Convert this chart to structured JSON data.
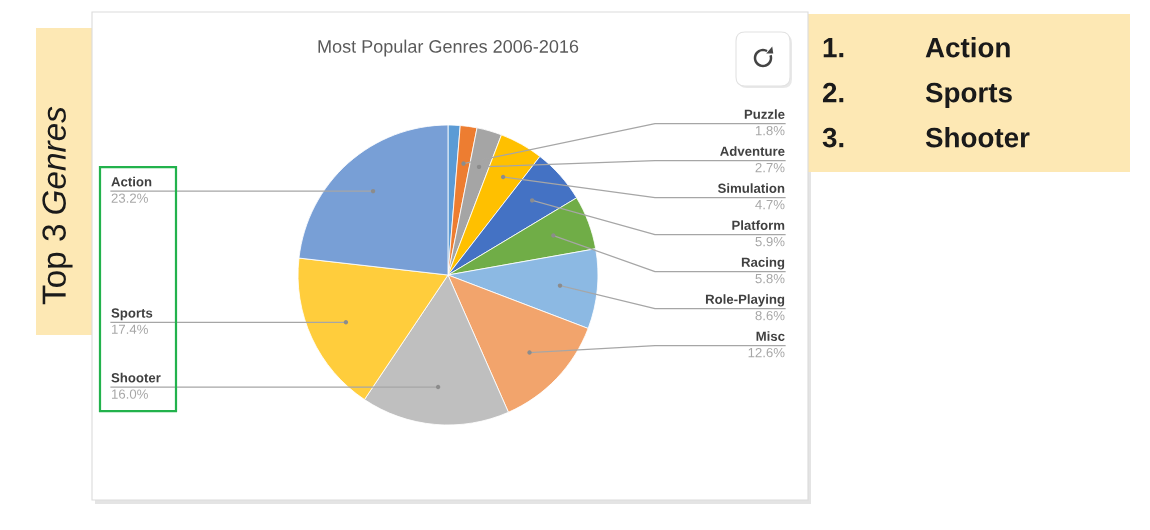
{
  "chart_data": {
    "type": "pie",
    "title": "Most Popular Genres 2006-2016",
    "categories": [
      null,
      "Puzzle",
      "Adventure",
      "Simulation",
      "Platform",
      "Racing",
      "Role-Playing",
      "Misc",
      "Shooter",
      "Sports",
      "Action"
    ],
    "values": [
      1.3,
      1.8,
      2.7,
      4.7,
      5.9,
      5.8,
      8.6,
      12.6,
      16.0,
      17.4,
      23.2
    ],
    "colors": [
      "#5b9bd5",
      "#ed7d31",
      "#a5a5a5",
      "#ffc000",
      "#4472c4",
      "#70ad47",
      "#8cb9e3",
      "#f2a46c",
      "#bfbfbf",
      "#ffcd3c",
      "#789fd6"
    ],
    "value_labels": [
      null,
      "1.8%",
      "2.7%",
      "4.7%",
      "5.9%",
      "5.8%",
      "8.6%",
      "12.6%",
      "16.0%",
      "17.4%",
      "23.2%"
    ],
    "annotations": [
      "Top 3 Genres",
      "1. Action",
      "2. Sports",
      "3. Shooter"
    ]
  }
}
